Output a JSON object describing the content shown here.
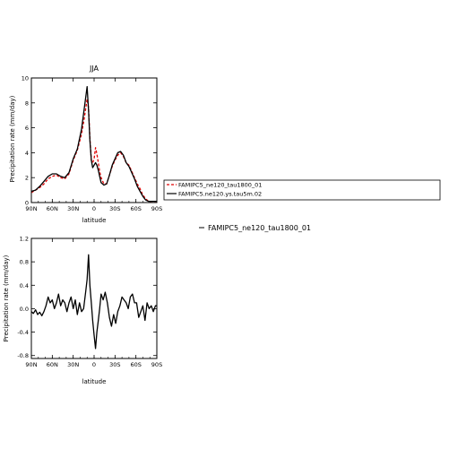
{
  "chart_data": [
    {
      "type": "line",
      "title": "JJA",
      "xlabel": "latitude",
      "ylabel": "Precipitation rate (mm/day)",
      "xlim": [
        90,
        -90
      ],
      "ylim": [
        0,
        10
      ],
      "x_ticks": [
        "90N",
        "60N",
        "30N",
        "0",
        "30S",
        "60S",
        "90S"
      ],
      "y_ticks": [
        "0",
        "2",
        "4",
        "6",
        "8",
        "10"
      ],
      "legend_position": "right",
      "series": [
        {
          "name": "FAMIPC5_ne120_tau1800_01",
          "color": "#e00000",
          "style": "dashed",
          "x": [
            90,
            84,
            78,
            72,
            66,
            60,
            54,
            48,
            42,
            36,
            30,
            24,
            18,
            14,
            10,
            8,
            6,
            4,
            2,
            0,
            -2,
            -4,
            -6,
            -8,
            -10,
            -14,
            -18,
            -22,
            -26,
            -30,
            -34,
            -38,
            -42,
            -46,
            -50,
            -54,
            -58,
            -62,
            -66,
            -70,
            -74,
            -78,
            -84,
            -90
          ],
          "values": [
            0.8,
            1.0,
            1.2,
            1.5,
            1.9,
            2.1,
            2.2,
            2.0,
            1.9,
            2.3,
            3.4,
            4.2,
            5.5,
            6.8,
            8.3,
            7.6,
            5.2,
            3.4,
            3.2,
            3.5,
            4.4,
            3.9,
            3.2,
            2.5,
            2.0,
            1.5,
            1.5,
            2.2,
            2.9,
            3.4,
            3.8,
            4.0,
            3.7,
            3.2,
            3.0,
            2.5,
            2.0,
            1.5,
            1.1,
            0.6,
            0.3,
            0.1,
            0.1,
            0.1
          ]
        },
        {
          "name": "FAMIPC5.ne120.ys.tau5m.02",
          "color": "#000000",
          "style": "solid",
          "x": [
            90,
            84,
            78,
            72,
            66,
            60,
            54,
            48,
            42,
            36,
            30,
            24,
            18,
            14,
            10,
            8,
            6,
            4,
            2,
            0,
            -2,
            -4,
            -6,
            -8,
            -10,
            -14,
            -18,
            -22,
            -26,
            -30,
            -34,
            -38,
            -42,
            -46,
            -50,
            -54,
            -58,
            -62,
            -66,
            -70,
            -74,
            -78,
            -84,
            -90
          ],
          "values": [
            0.9,
            1.0,
            1.3,
            1.7,
            2.1,
            2.3,
            2.3,
            2.1,
            2.0,
            2.4,
            3.5,
            4.3,
            5.9,
            7.6,
            9.3,
            7.4,
            5.0,
            3.4,
            2.8,
            3.0,
            3.2,
            3.0,
            2.6,
            2.1,
            1.6,
            1.4,
            1.5,
            2.2,
            3.0,
            3.5,
            4.0,
            4.1,
            3.8,
            3.2,
            2.9,
            2.4,
            1.9,
            1.3,
            0.9,
            0.5,
            0.2,
            0.1,
            0.1,
            0.1
          ]
        }
      ]
    },
    {
      "type": "line",
      "title": "",
      "xlabel": "latitude",
      "ylabel": "Precipitation rate (mm/day)",
      "xlim": [
        90,
        -90
      ],
      "ylim": [
        -0.85,
        1.2
      ],
      "x_ticks": [
        "90N",
        "60N",
        "30N",
        "0",
        "30S",
        "60S",
        "90S"
      ],
      "y_ticks": [
        "-0.8",
        "-0.4",
        "0.0",
        "0.4",
        "0.8",
        "1.2"
      ],
      "series": [
        {
          "name": "FAMIPC5_ne120_tau1800_01",
          "color": "#000000",
          "style": "solid",
          "x": [
            90,
            87,
            84,
            81,
            78,
            75,
            72,
            69,
            66,
            63,
            60,
            57,
            54,
            51,
            48,
            45,
            42,
            39,
            36,
            33,
            30,
            27,
            24,
            21,
            18,
            15,
            12,
            10,
            8,
            6,
            4,
            2,
            0,
            -2,
            -4,
            -6,
            -8,
            -10,
            -13,
            -16,
            -19,
            -22,
            -25,
            -28,
            -31,
            -34,
            -37,
            -40,
            -43,
            -46,
            -49,
            -52,
            -55,
            -58,
            -61,
            -64,
            -67,
            -70,
            -73,
            -76,
            -79,
            -82,
            -85,
            -88,
            -90
          ],
          "values": [
            -0.05,
            -0.08,
            -0.02,
            -0.1,
            -0.06,
            -0.12,
            -0.05,
            0.05,
            0.2,
            0.1,
            0.15,
            0.0,
            0.1,
            0.25,
            0.05,
            0.15,
            0.1,
            -0.05,
            0.1,
            0.2,
            0.0,
            0.15,
            -0.1,
            0.1,
            -0.05,
            0.0,
            0.3,
            0.5,
            0.92,
            0.4,
            0.1,
            -0.2,
            -0.45,
            -0.68,
            -0.4,
            -0.2,
            0.0,
            0.25,
            0.15,
            0.28,
            0.1,
            -0.15,
            -0.3,
            -0.1,
            -0.25,
            -0.05,
            0.05,
            0.2,
            0.15,
            0.1,
            0.0,
            0.2,
            0.25,
            0.1,
            0.1,
            -0.15,
            -0.05,
            0.05,
            -0.2,
            0.1,
            0.0,
            0.05,
            -0.05,
            0.05,
            0.05
          ]
        }
      ]
    }
  ],
  "legend_note": "FAMIPC5_ne120_tau1800_01"
}
